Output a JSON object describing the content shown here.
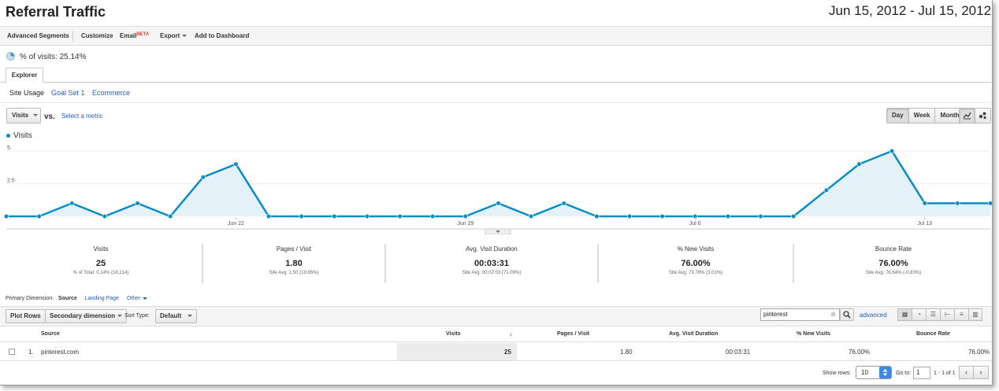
{
  "header": {
    "title": "Referral Traffic",
    "date_range": "Jun 15, 2012 - Jul 15, 2012"
  },
  "toolbar": {
    "advanced_segments": "Advanced Segments",
    "customize": "Customize",
    "email": "Email",
    "email_badge": "BETA",
    "export": "Export",
    "add_to_dashboard": "Add to Dashboard"
  },
  "summary": {
    "pct_of_visits": "% of visits: 25.14%",
    "pct_value": 25.14
  },
  "tabs": {
    "explorer": "Explorer"
  },
  "subtabs": [
    "Site Usage",
    "Goal Set 1",
    "Ecommerce"
  ],
  "metric_selector": {
    "metric": "Visits",
    "vs": "vs.",
    "select_metric": "Select a metric"
  },
  "granularity": {
    "options": [
      "Day",
      "Week",
      "Month"
    ],
    "selected": "Day"
  },
  "chart_data": {
    "type": "area",
    "series": [
      {
        "name": "Visits",
        "values": [
          0,
          0,
          1,
          0,
          1,
          0,
          3,
          4,
          0,
          0,
          0,
          0,
          0,
          0,
          0,
          1,
          0,
          1,
          0,
          0,
          0,
          0,
          0,
          0,
          0,
          2,
          4,
          5,
          1,
          1,
          1
        ]
      }
    ],
    "x_start": "2012-06-15",
    "x_tick_labels": [
      "Jun 22",
      "Jun 29",
      "Jul 6",
      "Jul 13"
    ],
    "y_tick_labels": [
      "5",
      "2.5"
    ],
    "ylim": [
      0,
      5
    ],
    "grid": true,
    "color": "#058dc7",
    "fill": "#e5f1f8"
  },
  "scorecards": [
    {
      "label": "Visits",
      "value": "25",
      "sub": "% of Total: 0.14% (18,214)"
    },
    {
      "label": "Pages / Visit",
      "value": "1.80",
      "sub": "Site Avg: 1.50 (19.65%)"
    },
    {
      "label": "Avg. Visit Duration",
      "value": "00:03:31",
      "sub": "Site Avg: 00:02:03 (71.09%)"
    },
    {
      "label": "% New Visits",
      "value": "76.00%",
      "sub": "Site Avg: 73.78% (3.01%)"
    },
    {
      "label": "Bounce Rate",
      "value": "76.00%",
      "sub": "Site Avg: 76.64% (-0.83%)"
    }
  ],
  "dimension": {
    "label": "Primary Dimension:",
    "current": "Source",
    "landing_page": "Landing Page",
    "other": "Other"
  },
  "table_controls": {
    "plot_rows": "Plot Rows",
    "secondary_dimension": "Secondary dimension",
    "sort_type_label": "Sort Type:",
    "sort_type": "Default",
    "search_value": "pinterest",
    "advanced": "advanced"
  },
  "table": {
    "headers": [
      "Source",
      "Visits",
      "Pages / Visit",
      "Avg. Visit Duration",
      "% New Visits",
      "Bounce Rate"
    ],
    "rows": [
      {
        "index": "1.",
        "source": "pinterest.com",
        "visits": "25",
        "pages_per_visit": "1.80",
        "avg_duration": "00:03:31",
        "new_visits": "76.00%",
        "bounce_rate": "76.00%"
      }
    ]
  },
  "pager": {
    "show_rows_label": "Show rows:",
    "show_rows": "10",
    "goto_label": "Go to:",
    "goto_value": "1",
    "range": "1 - 1 of 1"
  }
}
